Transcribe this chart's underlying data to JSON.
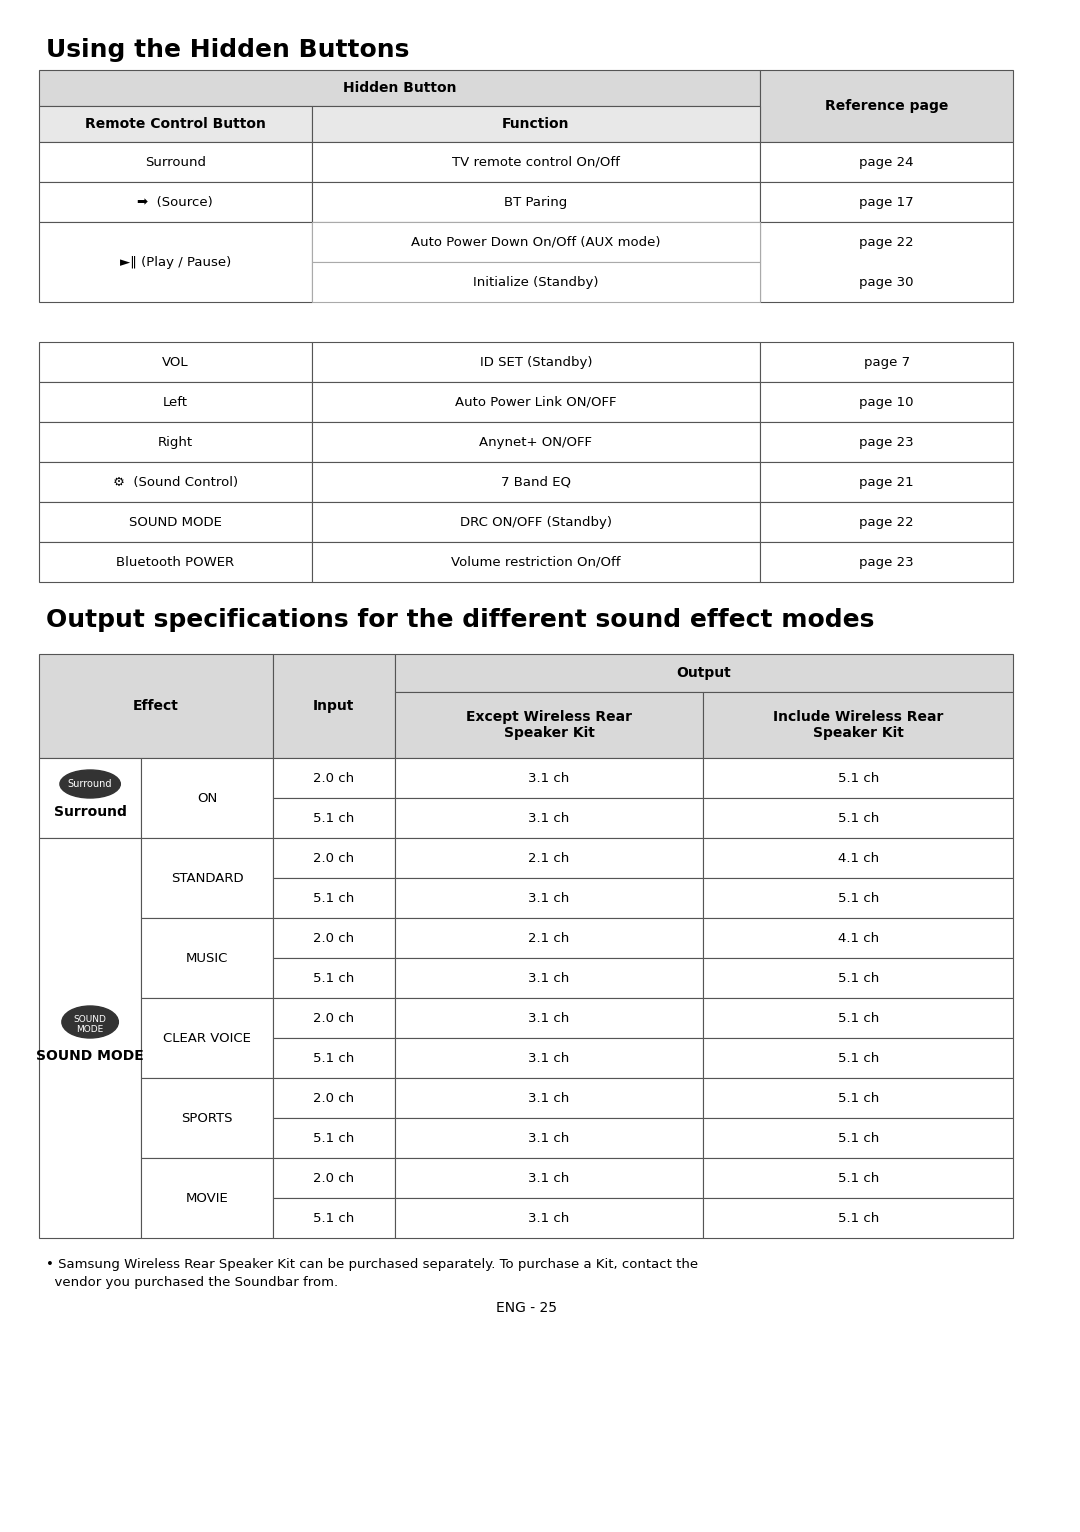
{
  "title1": "Using the Hidden Buttons",
  "title2": "Output specifications for the different sound effect modes",
  "bg_color": "#ffffff",
  "header_bg": "#d9d9d9",
  "subheader_bg": "#e8e8e8",
  "cell_bg": "#ffffff",
  "border_color": "#555555",
  "light_border": "#aaaaaa",
  "table1": {
    "col_headers": [
      "Hidden Button",
      "Reference page"
    ],
    "sub_headers": [
      "Remote Control Button",
      "Function",
      "Reference page"
    ],
    "rows": [
      [
        "Surround",
        "TV remote control On/Off",
        "page 24"
      ],
      [
        "[SOURCE](Source)",
        "BT Paring",
        "page 17"
      ],
      [
        "[PLAYPAUSE](Play / Pause)",
        "Auto Power Down On/Off (AUX mode)",
        "page 22"
      ],
      [
        "",
        "Initialize (Standby)",
        "page 30"
      ],
      [
        "VOL",
        "ID SET (Standby)",
        "page 7"
      ],
      [
        "Left",
        "Auto Power Link ON/OFF",
        "page 10"
      ],
      [
        "Right",
        "Anynet+ ON/OFF",
        "page 23"
      ],
      [
        "[SOUNDCTRL](Sound Control)",
        "7 Band EQ",
        "page 21"
      ],
      [
        "SOUND MODE",
        "DRC ON/OFF (Standby)",
        "page 22"
      ],
      [
        "Bluetooth POWER",
        "Volume restriction On/Off",
        "page 23"
      ]
    ]
  },
  "table2": {
    "col1_header": "Effect",
    "col2_header": "Input",
    "col3_header": "Output",
    "col3_sub1": "Except Wireless Rear\nSpeaker Kit",
    "col3_sub2": "Include Wireless Rear\nSpeaker Kit",
    "sections": [
      {
        "icon": "surround",
        "label": "Surround",
        "sub": "ON",
        "rows": [
          [
            "2.0 ch",
            "3.1 ch",
            "5.1 ch"
          ],
          [
            "5.1 ch",
            "3.1 ch",
            "5.1 ch"
          ]
        ]
      },
      {
        "icon": "soundmode",
        "label": "SOUND MODE",
        "subsections": [
          {
            "sub": "STANDARD",
            "rows": [
              [
                "2.0 ch",
                "2.1 ch",
                "4.1 ch"
              ],
              [
                "5.1 ch",
                "3.1 ch",
                "5.1 ch"
              ]
            ]
          },
          {
            "sub": "MUSIC",
            "rows": [
              [
                "2.0 ch",
                "2.1 ch",
                "4.1 ch"
              ],
              [
                "5.1 ch",
                "3.1 ch",
                "5.1 ch"
              ]
            ]
          },
          {
            "sub": "CLEAR VOICE",
            "rows": [
              [
                "2.0 ch",
                "3.1 ch",
                "5.1 ch"
              ],
              [
                "5.1 ch",
                "3.1 ch",
                "5.1 ch"
              ]
            ]
          },
          {
            "sub": "SPORTS",
            "rows": [
              [
                "2.0 ch",
                "3.1 ch",
                "5.1 ch"
              ],
              [
                "5.1 ch",
                "3.1 ch",
                "5.1 ch"
              ]
            ]
          },
          {
            "sub": "MOVIE",
            "rows": [
              [
                "2.0 ch",
                "3.1 ch",
                "5.1 ch"
              ],
              [
                "5.1 ch",
                "3.1 ch",
                "5.1 ch"
              ]
            ]
          }
        ]
      }
    ],
    "note": "• Samsung Wireless Rear Speaker Kit can be purchased separately. To purchase a Kit, contact the\n  vendor you purchased the Soundbar from.",
    "footer": "ENG - 25"
  }
}
